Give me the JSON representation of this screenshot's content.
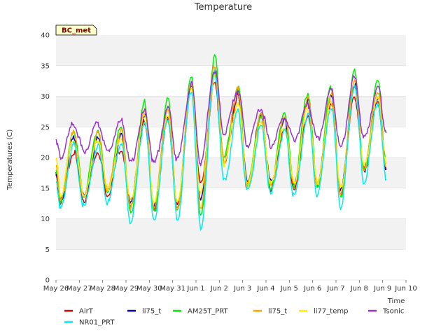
{
  "chart_data": {
    "type": "line",
    "title": "Temperature",
    "xlabel": "Time",
    "ylabel": "Temperatures (C)",
    "badge": "BC_met",
    "ylim": [
      0,
      40
    ],
    "yticks": [
      0,
      5,
      10,
      15,
      20,
      25,
      30,
      35,
      40
    ],
    "xlim": [
      0,
      15
    ],
    "xticks": [
      {
        "x": 0,
        "label": "May 26"
      },
      {
        "x": 1,
        "label": "May 27"
      },
      {
        "x": 2,
        "label": "May 28"
      },
      {
        "x": 3,
        "label": "May 29"
      },
      {
        "x": 4,
        "label": "May 30"
      },
      {
        "x": 5,
        "label": "May 31"
      },
      {
        "x": 6,
        "label": "Jun 1"
      },
      {
        "x": 7,
        "label": "Jun 2"
      },
      {
        "x": 8,
        "label": "Jun 3"
      },
      {
        "x": 9,
        "label": "Jun 4"
      },
      {
        "x": 10,
        "label": "Jun 5"
      },
      {
        "x": 11,
        "label": "Jun 6"
      },
      {
        "x": 12,
        "label": "Jun 7"
      },
      {
        "x": 13,
        "label": "Jun 8"
      },
      {
        "x": 14,
        "label": "Jun 9"
      },
      {
        "x": 15,
        "label": "Jun 10"
      }
    ],
    "grid": "horizontal bands",
    "legend_position": "bottom",
    "day_positions": [
      0.2,
      0.8,
      1.2,
      1.8,
      2.2,
      2.8,
      3.2,
      3.8,
      4.2,
      4.8,
      5.2,
      5.8,
      6.2,
      6.8,
      7.2,
      7.8,
      8.2,
      8.8,
      9.2,
      9.8,
      10.2,
      10.8,
      11.2,
      11.8,
      12.2,
      12.8,
      13.2,
      13.8,
      14.15
    ],
    "series": [
      {
        "name": "AirT",
        "color": "#dd0000",
        "x": [
          0.0,
          0.2,
          0.75,
          1.2,
          1.8,
          2.2,
          2.8,
          3.2,
          3.8,
          4.2,
          4.8,
          5.2,
          5.8,
          6.2,
          6.8,
          7.2,
          7.8,
          8.2,
          8.8,
          9.2,
          9.8,
          10.2,
          10.8,
          11.2,
          11.8,
          12.2,
          12.8,
          13.2,
          13.8,
          14.15
        ],
        "y": [
          17,
          12.5,
          21,
          13,
          21,
          14,
          21.5,
          12.5,
          26,
          11.5,
          26,
          12,
          31,
          15.5,
          32,
          19,
          30,
          15,
          27,
          15,
          25,
          15,
          27,
          15.5,
          29,
          14,
          30,
          18,
          29,
          18
        ]
      },
      {
        "name": "li75_t",
        "color": "#0000bb",
        "x": [
          0.0,
          0.2,
          0.75,
          1.2,
          1.8,
          2.2,
          2.8,
          3.2,
          3.8,
          4.2,
          4.8,
          5.2,
          5.8,
          6.2,
          6.8,
          7.2,
          7.8,
          8.2,
          8.8,
          9.2,
          9.8,
          10.2,
          10.8,
          11.2,
          11.8,
          12.2,
          12.8,
          13.2,
          13.8,
          14.15
        ],
        "y": [
          17.5,
          13,
          23,
          13.5,
          23,
          14.5,
          23.5,
          12.5,
          27,
          12,
          27,
          12,
          32,
          13.5,
          34,
          19.5,
          30.5,
          16,
          27,
          16,
          26,
          15.5,
          29,
          15.5,
          30,
          14.5,
          32,
          18,
          30,
          18
        ]
      },
      {
        "name": "AM25T_PRT",
        "color": "#00ee00",
        "x": [
          0.0,
          0.2,
          0.75,
          1.2,
          1.8,
          2.2,
          2.8,
          3.2,
          3.8,
          4.2,
          4.8,
          5.2,
          5.8,
          6.2,
          6.8,
          7.2,
          7.8,
          8.2,
          8.8,
          9.2,
          9.8,
          10.2,
          10.8,
          11.2,
          11.8,
          12.2,
          12.8,
          13.2,
          13.8,
          14.15
        ],
        "y": [
          18,
          13,
          24.5,
          14,
          24.5,
          14.5,
          25,
          11,
          29,
          11,
          29.5,
          11,
          33,
          10,
          36.5,
          20,
          31.5,
          15.5,
          27,
          15,
          27.5,
          15.5,
          30.5,
          15.5,
          31.5,
          13.5,
          34,
          18,
          32.5,
          19
        ]
      },
      {
        "name": "li75_t",
        "color": "#ffa500",
        "x": [
          0.0,
          0.2,
          0.75,
          1.2,
          1.8,
          2.2,
          2.8,
          3.2,
          3.8,
          4.2,
          4.8,
          5.2,
          5.8,
          6.2,
          6.8,
          7.2,
          7.8,
          8.2,
          8.8,
          9.2,
          9.8,
          10.2,
          10.8,
          11.2,
          11.8,
          12.2,
          12.8,
          13.2,
          13.8,
          14.15
        ],
        "y": [
          18.5,
          13,
          24,
          13.5,
          24,
          14.5,
          24.5,
          12,
          28,
          12,
          28,
          12,
          32.5,
          12,
          35,
          19.5,
          31,
          15.5,
          27,
          15.5,
          26.5,
          15.5,
          29.5,
          15.5,
          30.5,
          14,
          33,
          18,
          31,
          18.5
        ]
      },
      {
        "name": "li77_temp",
        "color": "#ffee00",
        "x": [
          0.0,
          0.2,
          0.75,
          1.2,
          1.8,
          2.2,
          2.8,
          3.2,
          3.8,
          4.2,
          4.8,
          5.2,
          5.8,
          6.2,
          6.8,
          7.2,
          7.8,
          8.2,
          8.8,
          9.2,
          9.8,
          10.2,
          10.8,
          11.2,
          11.8,
          12.2,
          12.8,
          13.2,
          13.8,
          14.15
        ],
        "y": [
          20,
          14,
          23,
          14,
          23,
          15,
          23,
          13,
          26.5,
          12.5,
          26.5,
          12.5,
          31,
          14,
          33,
          19,
          29,
          15.5,
          26,
          16,
          25,
          16,
          28,
          16,
          29,
          15,
          31,
          18.5,
          29.5,
          19
        ]
      },
      {
        "name": "NR01_PRT",
        "color": "#00eeee",
        "x": [
          0.0,
          0.2,
          0.75,
          1.2,
          1.8,
          2.2,
          2.8,
          3.2,
          3.8,
          4.2,
          4.8,
          5.2,
          5.8,
          6.2,
          6.8,
          7.2,
          7.8,
          8.2,
          8.8,
          9.2,
          9.8,
          10.2,
          10.8,
          11.2,
          11.8,
          12.2,
          12.8,
          13.2,
          13.8,
          14.15
        ],
        "y": [
          16,
          11.5,
          22,
          12,
          22,
          12.5,
          22.5,
          9.5,
          26,
          10,
          26.5,
          10,
          31,
          8.5,
          34,
          16,
          27.5,
          14.5,
          25,
          14,
          24.5,
          13.5,
          27,
          14,
          28.5,
          12,
          32,
          16,
          29,
          16.5
        ]
      },
      {
        "name": "Tsonic",
        "color": "#9933cc",
        "x": [
          0.0,
          0.2,
          0.75,
          1.2,
          1.8,
          2.2,
          2.8,
          3.2,
          3.8,
          4.2,
          4.8,
          5.2,
          5.8,
          6.2,
          6.8,
          7.2,
          7.8,
          8.2,
          8.8,
          9.2,
          9.8,
          10.2,
          10.8,
          11.2,
          11.8,
          12.2,
          12.8,
          13.2,
          13.8,
          14.15
        ],
        "y": [
          23,
          20,
          25.5,
          21,
          25.5,
          21,
          26,
          19,
          27.5,
          19,
          28,
          19.5,
          32,
          19,
          34.5,
          24,
          31,
          22,
          28,
          22,
          26.5,
          23,
          28.5,
          23,
          31,
          21.5,
          33,
          23,
          31.5,
          24
        ]
      }
    ]
  }
}
